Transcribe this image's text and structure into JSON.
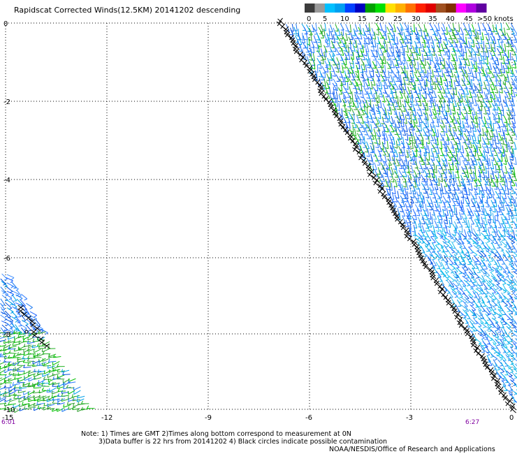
{
  "title": "Rapidscat Corrected Winds(12.5KM) 20141202 descending",
  "legend": {
    "colors": [
      "#3c3c3c",
      "#9a9a9a",
      "#00c0ff",
      "#00a0f0",
      "#0040ff",
      "#0000c0",
      "#00a000",
      "#00e000",
      "#ffe000",
      "#ffb000",
      "#ff7000",
      "#ff2000",
      "#e00000",
      "#a05020",
      "#803000",
      "#ff00ff",
      "#b000e0",
      "#6000a0"
    ],
    "labels": [
      "0",
      "5",
      "10",
      "15",
      "20",
      "25",
      "30",
      "35",
      "40",
      "45",
      ">50 knots"
    ]
  },
  "axes": {
    "y_ticks": [
      "0",
      "-2",
      "-4",
      "-6",
      "-8",
      "-10"
    ],
    "x_ticks": [
      "-15",
      "-12",
      "-9",
      "-6",
      "-3",
      "0"
    ]
  },
  "times": {
    "left": "6:01",
    "right": "6:27"
  },
  "notes": {
    "line1": "Note: 1) Times are GMT 2)Times along bottom correspond to measurement at 0N",
    "line2": "3)Data buffer is 22 hrs from 20141202 4) Black circles indicate possible contamination",
    "line3": "NOAA/NESDIS/Office of Research and Applications"
  }
}
